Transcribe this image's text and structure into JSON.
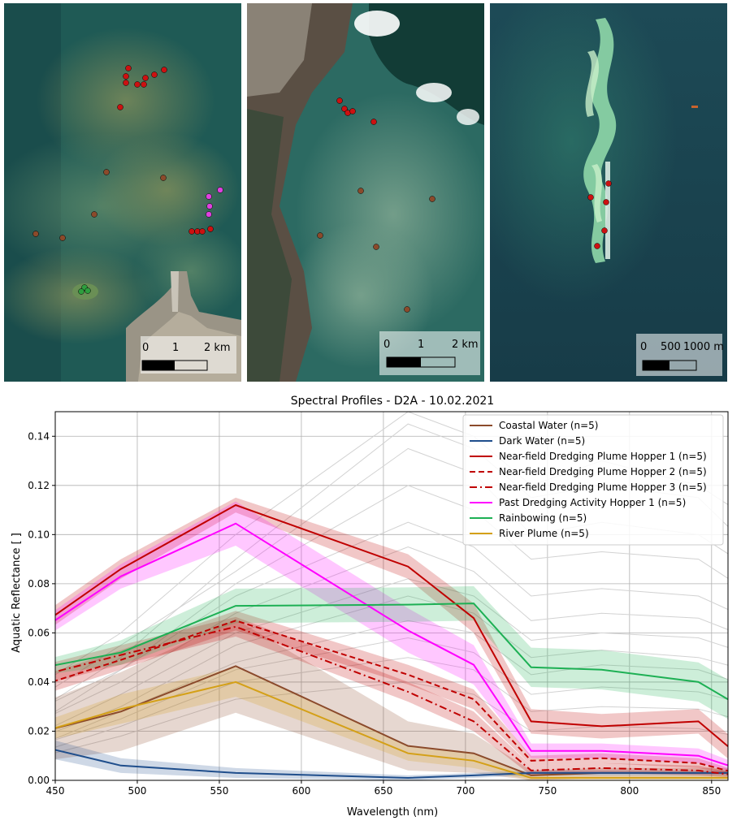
{
  "panels": [
    {
      "scale_ticks": [
        "0",
        "1",
        "2 km"
      ]
    },
    {
      "scale_ticks": [
        "0",
        "1",
        "2 km"
      ]
    },
    {
      "scale_ticks": [
        "0",
        "500",
        "1000 m"
      ]
    }
  ],
  "colors": {
    "coastal_water": "#8B4A2B",
    "dark_water": "#1F4E8C",
    "near_field": "#C00000",
    "past_dredging": "#FF00FF",
    "rainbowing": "#1DB054",
    "river_plume": "#D4A017",
    "marker_red": "#CC1111",
    "marker_brown": "#8B4A2B",
    "marker_magenta": "#E040E0",
    "marker_green": "#2E9E3E"
  },
  "chart_data": {
    "type": "line",
    "title": "Spectral Profiles - D2A - 10.02.2021",
    "xlabel": "Wavelength (nm)",
    "ylabel": "Aquatic Reflectance [ ]",
    "xlim": [
      450,
      860
    ],
    "ylim": [
      0,
      0.15
    ],
    "xticks": [
      450,
      500,
      550,
      600,
      650,
      700,
      750,
      800,
      850
    ],
    "yticks": [
      0.0,
      0.02,
      0.04,
      0.06,
      0.08,
      0.1,
      0.12,
      0.14
    ],
    "ytick_labels": [
      "0.00",
      "0.02",
      "0.04",
      "0.06",
      "0.08",
      "0.10",
      "0.12",
      "0.14"
    ],
    "grid": true,
    "legend_position": "top-right",
    "x": [
      443,
      490,
      560,
      665,
      705,
      740,
      783,
      842,
      865
    ],
    "series": [
      {
        "name": "Coastal Water (n=5)",
        "color": "#8B4A2B",
        "dash": "solid",
        "values": [
          0.02,
          0.028,
          0.0465,
          0.014,
          0.011,
          0.002,
          0.003,
          0.003,
          0.003
        ],
        "spread": [
          0.012,
          0.016,
          0.019,
          0.01,
          0.008,
          0.002,
          0.002,
          0.002,
          0.002
        ]
      },
      {
        "name": "Dark Water (n=5)",
        "color": "#1F4E8C",
        "dash": "solid",
        "values": [
          0.0135,
          0.006,
          0.003,
          0.001,
          0.002,
          0.003,
          0.003,
          0.003,
          0.003
        ],
        "spread": [
          0.004,
          0.003,
          0.002,
          0.001,
          0.001,
          0.001,
          0.001,
          0.001,
          0.001
        ]
      },
      {
        "name": "Near-field Dredging Plume Hopper 1 (n=5)",
        "color": "#C00000",
        "dash": "solid",
        "values": [
          0.064,
          0.086,
          0.112,
          0.087,
          0.066,
          0.024,
          0.022,
          0.024,
          0.011
        ],
        "spread": [
          0.004,
          0.004,
          0.003,
          0.005,
          0.006,
          0.005,
          0.005,
          0.005,
          0.005
        ]
      },
      {
        "name": "Near-field Dredging Plume Hopper 2 (n=5)",
        "color": "#C00000",
        "dash": "dashed",
        "values": [
          0.039,
          0.049,
          0.065,
          0.043,
          0.033,
          0.008,
          0.009,
          0.007,
          0.003
        ],
        "spread": [
          0.004,
          0.004,
          0.004,
          0.004,
          0.004,
          0.002,
          0.002,
          0.002,
          0.001
        ]
      },
      {
        "name": "Near-field Dredging Plume Hopper 3 (n=5)",
        "color": "#C00000",
        "dash": "dashdot",
        "values": [
          0.043,
          0.051,
          0.0625,
          0.036,
          0.024,
          0.004,
          0.005,
          0.004,
          0.002
        ],
        "spread": [
          0.004,
          0.004,
          0.004,
          0.004,
          0.004,
          0.002,
          0.002,
          0.002,
          0.001
        ]
      },
      {
        "name": "Past Dredging Activity Hopper 1 (n=5)",
        "color": "#FF00FF",
        "dash": "solid",
        "values": [
          0.062,
          0.083,
          0.1045,
          0.061,
          0.047,
          0.012,
          0.012,
          0.01,
          0.005
        ],
        "spread": [
          0.004,
          0.005,
          0.009,
          0.009,
          0.008,
          0.003,
          0.003,
          0.003,
          0.002
        ]
      },
      {
        "name": "Rainbowing (n=5)",
        "color": "#1DB054",
        "dash": "solid",
        "values": [
          0.046,
          0.052,
          0.071,
          0.0715,
          0.072,
          0.046,
          0.045,
          0.04,
          0.031
        ],
        "spread": [
          0.003,
          0.005,
          0.007,
          0.007,
          0.007,
          0.008,
          0.008,
          0.008,
          0.008
        ]
      },
      {
        "name": "River Plume (n=5)",
        "color": "#D4A017",
        "dash": "solid",
        "values": [
          0.02,
          0.029,
          0.04,
          0.011,
          0.008,
          0.001,
          0.001,
          0.001,
          0.001
        ],
        "spread": [
          0.004,
          0.006,
          0.006,
          0.003,
          0.003,
          0.001,
          0.001,
          0.001,
          0.001
        ]
      }
    ],
    "background_profiles_color": "#d2d2d2",
    "background_profiles": [
      [
        0.03,
        0.05,
        0.09,
        0.145,
        0.135,
        0.115,
        0.12,
        0.115,
        0.1
      ],
      [
        0.04,
        0.06,
        0.1,
        0.15,
        0.14,
        0.12,
        0.13,
        0.12,
        0.11
      ],
      [
        0.035,
        0.055,
        0.085,
        0.135,
        0.125,
        0.1,
        0.105,
        0.1,
        0.09
      ],
      [
        0.025,
        0.045,
        0.08,
        0.12,
        0.11,
        0.09,
        0.093,
        0.09,
        0.08
      ],
      [
        0.03,
        0.045,
        0.075,
        0.105,
        0.095,
        0.075,
        0.078,
        0.075,
        0.068
      ],
      [
        0.025,
        0.04,
        0.068,
        0.095,
        0.085,
        0.065,
        0.068,
        0.066,
        0.06
      ],
      [
        0.02,
        0.035,
        0.06,
        0.082,
        0.075,
        0.057,
        0.06,
        0.058,
        0.053
      ],
      [
        0.018,
        0.03,
        0.055,
        0.075,
        0.068,
        0.05,
        0.053,
        0.05,
        0.046
      ],
      [
        0.015,
        0.028,
        0.048,
        0.065,
        0.06,
        0.043,
        0.047,
        0.045,
        0.04
      ],
      [
        0.015,
        0.025,
        0.045,
        0.058,
        0.052,
        0.035,
        0.038,
        0.036,
        0.032
      ],
      [
        0.012,
        0.022,
        0.04,
        0.05,
        0.045,
        0.028,
        0.03,
        0.029,
        0.025
      ],
      [
        0.01,
        0.018,
        0.033,
        0.04,
        0.035,
        0.02,
        0.022,
        0.021,
        0.018
      ]
    ]
  }
}
